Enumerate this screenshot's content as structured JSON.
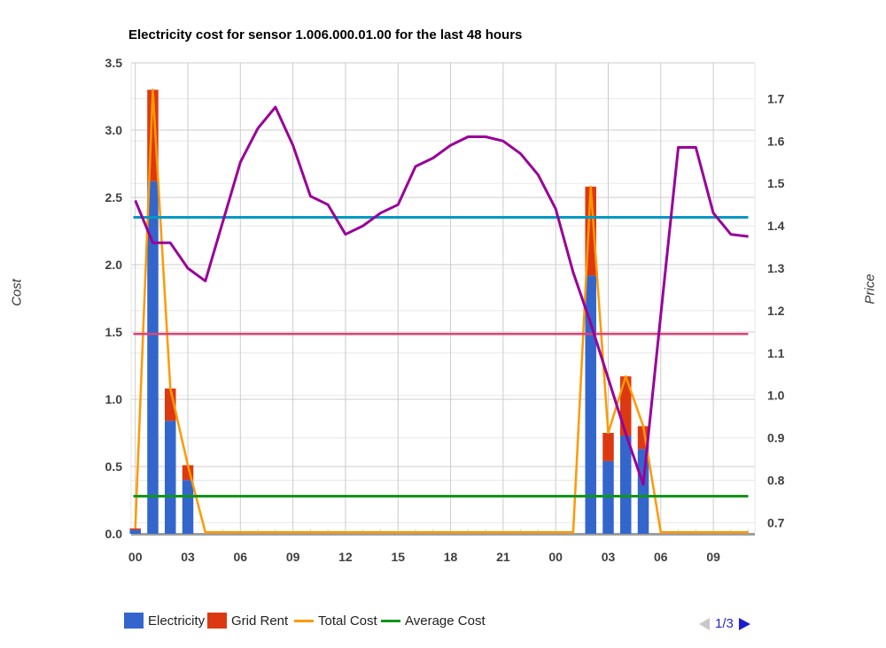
{
  "header": {
    "title": "Electricity cost for sensor 1.006.000.01.00 for the last 48 hours"
  },
  "chart_data": {
    "type": "bar",
    "subtype": "combo-stacked-columns-with-lines",
    "categories": [
      "00",
      "01",
      "02",
      "03",
      "04",
      "05",
      "06",
      "07",
      "08",
      "09",
      "10",
      "11",
      "12",
      "13",
      "14",
      "15",
      "16",
      "17",
      "18",
      "19",
      "20",
      "21",
      "22",
      "23",
      "00",
      "01",
      "02",
      "03",
      "04",
      "05",
      "06",
      "07",
      "08",
      "09",
      "10",
      "11"
    ],
    "x_tick_interval": 3,
    "left_axis": {
      "title": "Cost",
      "min": 0,
      "max": 3.5,
      "tick_values": [
        0,
        0.5,
        1,
        1.5,
        2,
        2.5,
        3,
        3.5
      ],
      "tick_labels": [
        "0.0",
        "0.5",
        "1.0",
        "1.5",
        "2.0",
        "2.5",
        "3.0",
        "3.5"
      ]
    },
    "right_axis": {
      "title": "Price",
      "min": 0.7,
      "max": 1.7,
      "tick_values": [
        0.7,
        0.8,
        0.9,
        1.0,
        1.1,
        1.2,
        1.3,
        1.4,
        1.5,
        1.6,
        1.7
      ],
      "tick_labels": [
        "0.7",
        "0.8",
        "0.9",
        "1.0",
        "1.1",
        "1.2",
        "1.3",
        "1.4",
        "1.5",
        "1.6",
        "1.7"
      ]
    },
    "grid": true,
    "legend_position": "bottom",
    "series": [
      {
        "id": "electricity",
        "label": "Electricity",
        "kind": "bar",
        "axis": "left",
        "color": "#3366cc",
        "values": [
          0.03,
          2.62,
          0.84,
          0.4,
          0,
          0,
          0,
          0,
          0,
          0,
          0,
          0,
          0,
          0,
          0,
          0,
          0,
          0,
          0,
          0,
          0,
          0,
          0,
          0,
          0,
          0,
          1.92,
          0.54,
          0.73,
          0.63,
          0,
          0,
          0,
          0,
          0,
          0
        ]
      },
      {
        "id": "grid-rent",
        "label": "Grid Rent",
        "kind": "bar-stacked",
        "axis": "left",
        "color": "#dc3912",
        "values": [
          0.01,
          0.68,
          0.24,
          0.11,
          0,
          0,
          0,
          0,
          0,
          0,
          0,
          0,
          0,
          0,
          0,
          0,
          0,
          0,
          0,
          0,
          0,
          0,
          0,
          0,
          0,
          0,
          0.66,
          0.21,
          0.44,
          0.17,
          0,
          0,
          0,
          0,
          0,
          0
        ]
      },
      {
        "id": "total-cost",
        "label": "Total Cost",
        "kind": "line",
        "axis": "left",
        "color": "#ff9900",
        "values": [
          0.04,
          3.3,
          1.08,
          0.51,
          0,
          0,
          0,
          0,
          0,
          0,
          0,
          0,
          0,
          0,
          0,
          0,
          0,
          0,
          0,
          0,
          0,
          0,
          0,
          0,
          0,
          0,
          2.58,
          0.75,
          1.17,
          0.8,
          0,
          0,
          0,
          0,
          0,
          0
        ]
      },
      {
        "id": "average-cost",
        "label": "Average Cost",
        "kind": "constant-line",
        "axis": "left",
        "color": "#109618",
        "value": 0.28
      },
      {
        "id": "price-line",
        "kind": "line",
        "axis": "right",
        "color": "#990099",
        "values": [
          1.46,
          1.36,
          1.36,
          1.3,
          1.27,
          1.41,
          1.55,
          1.63,
          1.68,
          1.59,
          1.47,
          1.45,
          1.38,
          1.4,
          1.43,
          1.45,
          1.54,
          1.56,
          1.59,
          1.61,
          1.61,
          1.6,
          1.57,
          1.52,
          1.44,
          1.29,
          1.17,
          1.04,
          0.91,
          0.79,
          1.19,
          1.585,
          1.585,
          1.43,
          1.38,
          1.375
        ]
      },
      {
        "id": "constant-line-cyan",
        "kind": "constant-line",
        "axis": "right",
        "color": "#0099c6",
        "value": 1.42
      },
      {
        "id": "constant-line-pink",
        "kind": "constant-line",
        "axis": "right",
        "color": "#dd4477",
        "value": 1.145
      }
    ]
  },
  "legend": {
    "items": [
      {
        "label": "Electricity",
        "color": "#3366cc",
        "swatch": "square"
      },
      {
        "label": "Grid Rent",
        "color": "#dc3912",
        "swatch": "square"
      },
      {
        "label": "Total Cost",
        "color": "#ff9900",
        "swatch": "line"
      },
      {
        "label": "Average Cost",
        "color": "#109618",
        "swatch": "line"
      }
    ],
    "pagination": {
      "label": "1/3"
    }
  }
}
